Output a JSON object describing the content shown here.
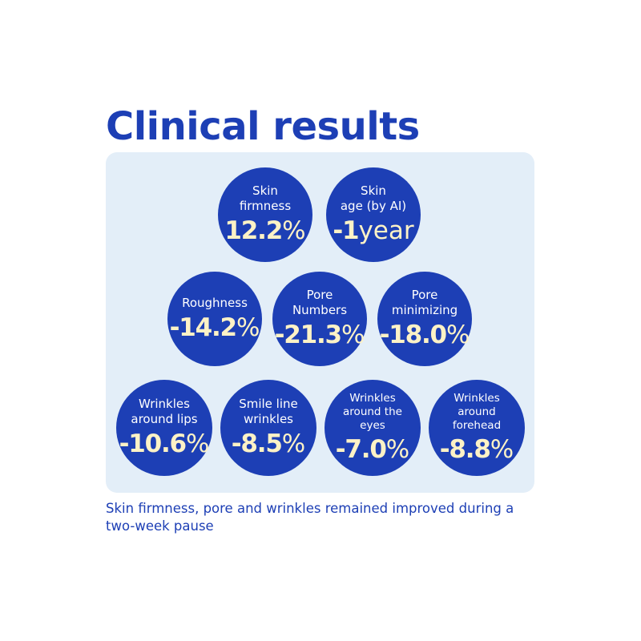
{
  "title": "Clinical results",
  "colors": {
    "brand_blue": "#1d3fb5",
    "panel_bg": "#e3eef8",
    "value_text": "#fdf2c6"
  },
  "results": [
    {
      "id": "skin-firmness",
      "label": "Skin\nfirmness",
      "value": "12.2",
      "unit": "%"
    },
    {
      "id": "skin-age",
      "label": "Skin\nage (by AI)",
      "value": "-1",
      "unit": "year"
    },
    {
      "id": "roughness",
      "label": "Roughness",
      "value": "-14.2",
      "unit": "%"
    },
    {
      "id": "pore-numbers",
      "label": "Pore\nNumbers",
      "value": "-21.3",
      "unit": "%"
    },
    {
      "id": "pore-minimizing",
      "label": "Pore\nminimizing",
      "value": "-18.0",
      "unit": "%"
    },
    {
      "id": "wrinkles-lips",
      "label": "Wrinkles\naround lips",
      "value": "-10.6",
      "unit": "%"
    },
    {
      "id": "smile-line",
      "label": "Smile line\nwrinkles",
      "value": "-8.5",
      "unit": "%"
    },
    {
      "id": "wrinkles-eyes",
      "label": "Wrinkles\naround the\neyes",
      "value": "-7.0",
      "unit": "%"
    },
    {
      "id": "wrinkles-forehead",
      "label": "Wrinkles\naround\nforehead",
      "value": "-8.8",
      "unit": "%"
    }
  ],
  "footnote": "Skin firmness, pore and wrinkles remained improved during a two-week pause"
}
